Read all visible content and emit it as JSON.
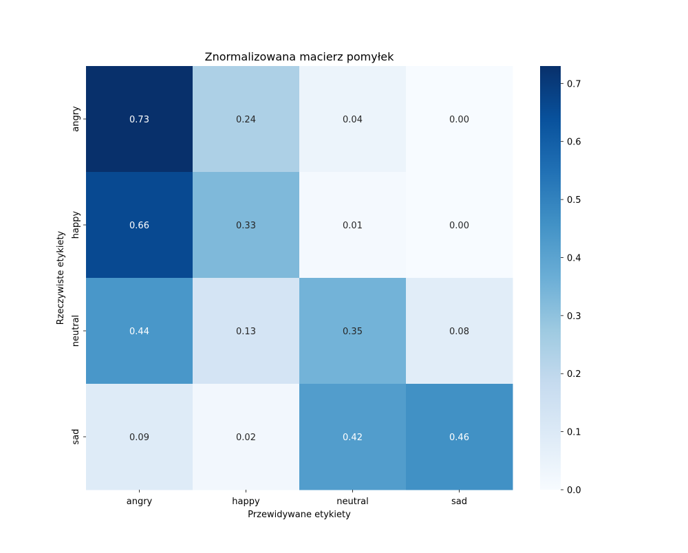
{
  "chart_data": {
    "type": "heatmap",
    "title": "Znormalizowana macierz pomyłek",
    "xlabel": "Przewidywane etykiety",
    "ylabel": "Rzeczywiste etykiety",
    "x_categories": [
      "angry",
      "happy",
      "neutral",
      "sad"
    ],
    "y_categories": [
      "angry",
      "happy",
      "neutral",
      "sad"
    ],
    "values": [
      [
        0.73,
        0.24,
        0.04,
        0.0
      ],
      [
        0.66,
        0.33,
        0.01,
        0.0
      ],
      [
        0.44,
        0.13,
        0.35,
        0.08
      ],
      [
        0.09,
        0.02,
        0.42,
        0.46
      ]
    ],
    "value_labels": [
      [
        "0.73",
        "0.24",
        "0.04",
        "0.00"
      ],
      [
        "0.66",
        "0.33",
        "0.01",
        "0.00"
      ],
      [
        "0.44",
        "0.13",
        "0.35",
        "0.08"
      ],
      [
        "0.09",
        "0.02",
        "0.42",
        "0.46"
      ]
    ],
    "colorbar": {
      "colormap": "Blues",
      "range": [
        0,
        0.73
      ],
      "ticks": [
        0.0,
        0.1,
        0.2,
        0.3,
        0.4,
        0.5,
        0.6,
        0.7
      ],
      "tick_labels": [
        "0.0",
        "0.1",
        "0.2",
        "0.3",
        "0.4",
        "0.5",
        "0.6",
        "0.7"
      ]
    }
  }
}
